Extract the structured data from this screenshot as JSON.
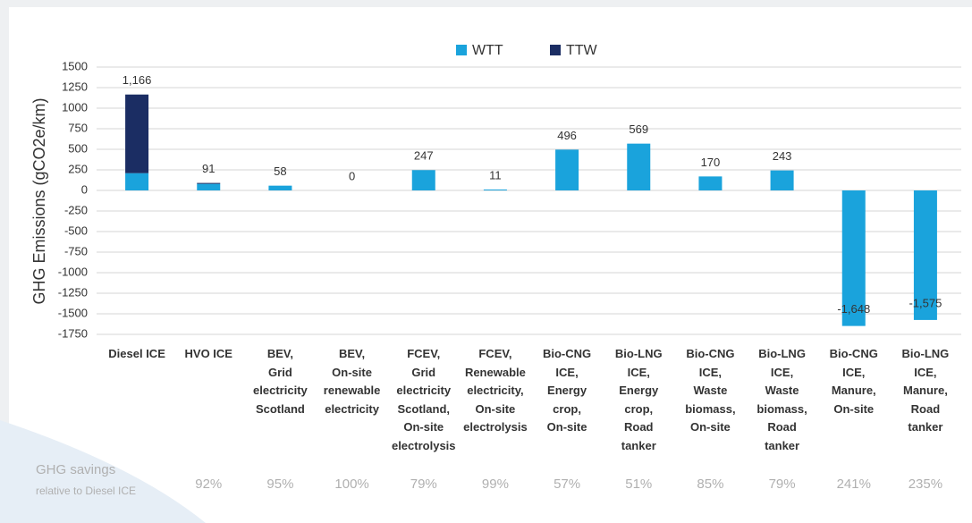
{
  "chart_data": {
    "type": "bar",
    "stacked": true,
    "y_label": "GHG Emissions (gCO2e/km)",
    "categories": [
      "Diesel ICE",
      "HVO ICE",
      "BEV,\nGrid\nelectricity\nScotland",
      "BEV,\nOn-site\nrenewable\nelectricity",
      "FCEV,\nGrid\nelectricity\nScotland,\nOn-site\nelectrolysis",
      "FCEV,\nRenewable\nelectricity,\nOn-site\nelectrolysis",
      "Bio-CNG\nICE,\nEnergy\ncrop,\nOn-site",
      "Bio-LNG\nICE,\nEnergy\ncrop,\nRoad\ntanker",
      "Bio-CNG\nICE,\nWaste\nbiomass,\nOn-site",
      "Bio-LNG\nICE,\nWaste\nbiomass,\nRoad\ntanker",
      "Bio-CNG\nICE,\nManure,\nOn-site",
      "Bio-LNG\nICE,\nManure,\nRoad\ntanker"
    ],
    "series": [
      {
        "name": "WTT",
        "color": "#1aa3dc",
        "values": [
          210,
          80,
          58,
          0,
          247,
          11,
          496,
          569,
          170,
          243,
          -1648,
          -1575
        ]
      },
      {
        "name": "TTW",
        "color": "#1b2d63",
        "values": [
          956,
          11,
          0,
          0,
          0,
          0,
          0,
          0,
          0,
          0,
          0,
          0
        ]
      }
    ],
    "totals": [
      1166,
      91,
      58,
      0,
      247,
      11,
      496,
      569,
      170,
      243,
      -1648,
      -1575
    ],
    "total_labels": [
      "1,166",
      "91",
      "58",
      "0",
      "247",
      "11",
      "496",
      "569",
      "170",
      "243",
      "-1,648",
      "-1,575"
    ],
    "ylim": [
      -1750,
      1500
    ],
    "yticks": [
      1500,
      1250,
      1000,
      750,
      500,
      250,
      0,
      -250,
      -500,
      -750,
      -1000,
      -1250,
      -1500,
      -1750
    ],
    "grid": true,
    "legend": "top",
    "savings_title": "GHG savings",
    "savings_subtitle": "relative to Diesel ICE",
    "savings": [
      null,
      92,
      95,
      100,
      79,
      99,
      57,
      51,
      85,
      79,
      241,
      235
    ],
    "savings_labels": [
      null,
      "92%",
      "95%",
      "100%",
      "79%",
      "99%",
      "57%",
      "51%",
      "85%",
      "79%",
      "241%",
      "235%"
    ]
  }
}
